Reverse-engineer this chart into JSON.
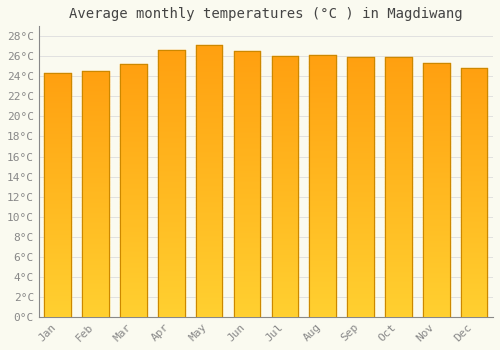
{
  "title": "Average monthly temperatures (°C ) in Magdiwang",
  "months": [
    "Jan",
    "Feb",
    "Mar",
    "Apr",
    "May",
    "Jun",
    "Jul",
    "Aug",
    "Sep",
    "Oct",
    "Nov",
    "Dec"
  ],
  "temperatures": [
    24.3,
    24.5,
    25.2,
    26.6,
    27.1,
    26.5,
    26.0,
    26.1,
    25.9,
    25.9,
    25.3,
    24.8
  ],
  "bar_color_mid": "#FFA500",
  "bar_color_bottom": "#FFD000",
  "bar_edge_color": "#CC8800",
  "background_color": "#FAFAF0",
  "grid_color": "#DDDDDD",
  "ylim": [
    0,
    29
  ],
  "yticks": [
    0,
    2,
    4,
    6,
    8,
    10,
    12,
    14,
    16,
    18,
    20,
    22,
    24,
    26,
    28
  ],
  "ytick_labels": [
    "0°C",
    "2°C",
    "4°C",
    "6°C",
    "8°C",
    "10°C",
    "12°C",
    "14°C",
    "16°C",
    "18°C",
    "20°C",
    "22°C",
    "24°C",
    "26°C",
    "28°C"
  ],
  "title_fontsize": 10,
  "tick_fontsize": 8,
  "font_family": "monospace"
}
